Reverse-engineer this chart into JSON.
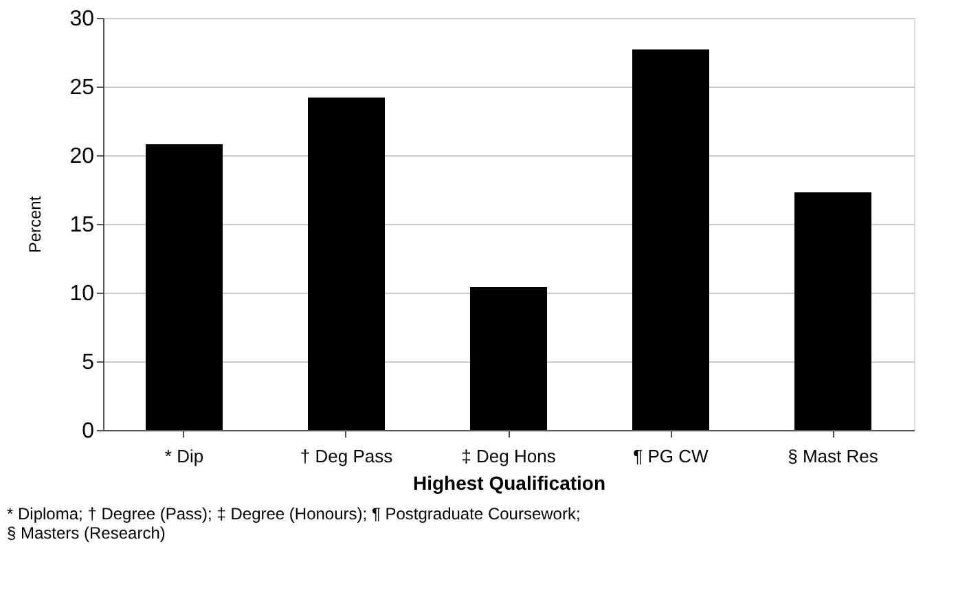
{
  "chart_data": {
    "type": "bar",
    "xlabel": "Highest Qualification",
    "ylabel": "Percent",
    "categories": [
      "* Dip",
      "† Deg Pass",
      "‡ Deg Hons",
      "¶ PG CW",
      "§ Mast Res"
    ],
    "values": [
      20.8,
      24.2,
      10.4,
      27.7,
      17.3
    ],
    "color": "#000000",
    "ylim": [
      0,
      30
    ],
    "yticks": [
      0,
      5,
      10,
      15,
      20,
      25,
      30
    ],
    "grid": "y",
    "annotations": [
      "* Diploma; † Degree (Pass); ‡ Degree (Honours); ¶ Postgraduate Coursework;",
      "§ Masters (Research)"
    ]
  }
}
